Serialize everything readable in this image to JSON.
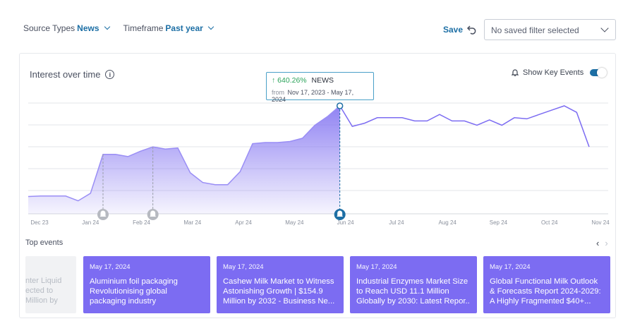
{
  "filters": {
    "source_label": "Source Types",
    "source_value": "News",
    "timeframe_label": "Timeframe",
    "timeframe_value": "Past year"
  },
  "header": {
    "save_label": "Save",
    "saved_filter": "No saved filter selected"
  },
  "card": {
    "title": "Interest over time",
    "show_key_events": "Show Key Events",
    "key_events_on": true
  },
  "tooltip": {
    "change": "640.26%",
    "series": "NEWS",
    "from_label": "from",
    "range": "Nov 17, 2023 - May 17, 2024"
  },
  "chart_data": {
    "type": "area",
    "x_ticks": [
      "Dec 23",
      "Jan 24",
      "Feb 24",
      "Mar 24",
      "Apr 24",
      "May 24",
      "Jun 24",
      "Jul 24",
      "Aug 24",
      "Sep 24",
      "Oct 24",
      "Nov 24"
    ],
    "series": [
      {
        "values": [
          16,
          16.5,
          16.5,
          16.5,
          12,
          19,
          55,
          55,
          53,
          58,
          62,
          60,
          61,
          38,
          29,
          27,
          27,
          39,
          65,
          66,
          66,
          67,
          70,
          82,
          90,
          100,
          81,
          84,
          89,
          89,
          89,
          86,
          86,
          92,
          86,
          86,
          82,
          87,
          82,
          89,
          88,
          92,
          96,
          100,
          94,
          62
        ],
        "highlight_until_index": 25
      }
    ],
    "ylim": [
      0,
      100
    ],
    "grid": true,
    "key_events_index": [
      6,
      10,
      25
    ]
  },
  "events": {
    "title": "Top events",
    "ghost_text": [
      "nter Liquid",
      "ected to",
      "Million by"
    ],
    "items": [
      {
        "date": "May 17, 2024",
        "title": "Aluminium foil packaging Revolutionising global packaging industry"
      },
      {
        "date": "May 17, 2024",
        "title": "Cashew Milk Market to Witness Astonishing Growth | $154.9 Million by 2032 - Business Ne..."
      },
      {
        "date": "May 17, 2024",
        "title": "Industrial Enzymes Market Size to Reach USD 11.1 Million Globally by 2030: Latest Repor.."
      },
      {
        "date": "May 17, 2024",
        "title": "Global Functional Milk Outlook & Forecasts Report 2024-2029: A Highly Fragmented $40+..."
      }
    ]
  },
  "colors": {
    "accent": "#1d6fa5",
    "area": "#8a7cf2",
    "card": "#7c6cf2",
    "positive": "#2ba35a"
  }
}
